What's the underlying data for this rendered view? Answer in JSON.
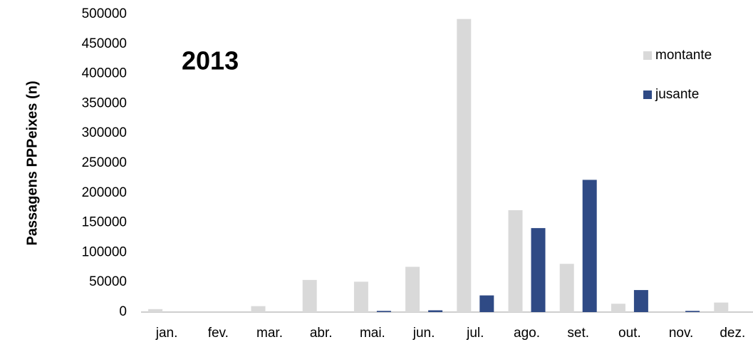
{
  "chart_data": {
    "type": "bar",
    "title": "2013",
    "y_label": "Passagens  PPPeixes (n)",
    "categories": [
      "jan.",
      "fev.",
      "mar.",
      "abr.",
      "mai.",
      "jun.",
      "jul.",
      "ago.",
      "set.",
      "out.",
      "nov.",
      "dez."
    ],
    "series": [
      {
        "name": "montante",
        "color": "#d9d9d9",
        "values": [
          5000,
          0,
          10000,
          54000,
          51000,
          76000,
          492000,
          171000,
          81000,
          14000,
          0,
          16000
        ]
      },
      {
        "name": "jusante",
        "color": "#2f4a85",
        "values": [
          0,
          0,
          0,
          0,
          2000,
          3000,
          28000,
          141000,
          222000,
          37000,
          2000,
          0
        ]
      }
    ],
    "ylim": [
      0,
      500000
    ],
    "yticks": [
      0,
      50000,
      100000,
      150000,
      200000,
      250000,
      300000,
      350000,
      400000,
      450000,
      500000
    ],
    "grid": false,
    "legend": "right"
  }
}
